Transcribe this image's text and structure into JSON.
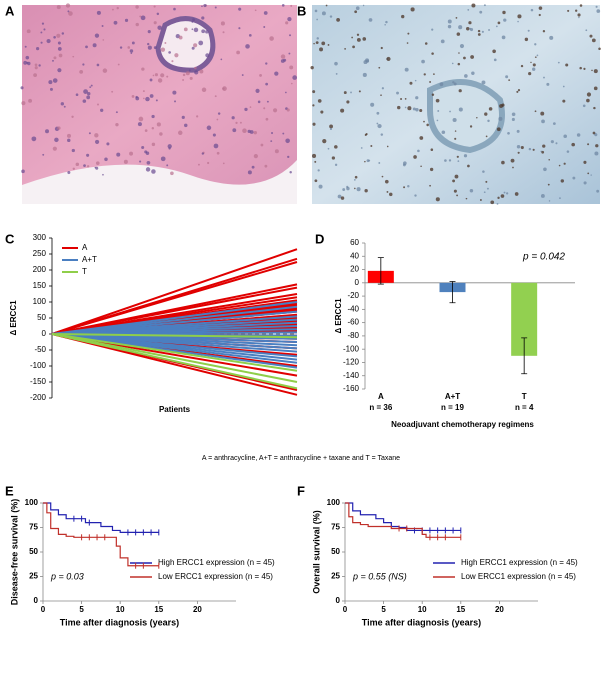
{
  "images": [
    {
      "panel": "A"
    },
    {
      "panel": "B"
    }
  ],
  "footnote": "A = anthracycline, A+T = anthracycline + taxane and T = Taxane",
  "chart_data": [
    {
      "type": "line",
      "panel": "C",
      "y_label": "Δ ERCC1",
      "x_label": "Patients",
      "ylim": [
        -200,
        300
      ],
      "yticks": [
        -200,
        -150,
        -100,
        -50,
        0,
        50,
        100,
        150,
        200,
        250,
        300
      ],
      "series": [
        {
          "name": "A",
          "color": "#e00000",
          "values": [
            265,
            235,
            225,
            155,
            145,
            125,
            115,
            105,
            100,
            95,
            90,
            80,
            75,
            70,
            60,
            55,
            50,
            45,
            40,
            35,
            30,
            25,
            20,
            15,
            10,
            5,
            -5,
            -10,
            -15,
            -25,
            -45,
            -65,
            -100,
            -130,
            -175,
            -190
          ]
        },
        {
          "name": "A+T",
          "color": "#4a7fc1",
          "values": [
            100,
            85,
            70,
            55,
            45,
            35,
            25,
            15,
            5,
            -5,
            -15,
            -25,
            -35,
            -45,
            -55,
            -70,
            -80,
            -90,
            -105
          ]
        },
        {
          "name": "T",
          "color": "#8fce4a",
          "values": [
            -10,
            -115,
            -150,
            -170
          ]
        }
      ]
    },
    {
      "type": "bar",
      "panel": "D",
      "y_label": "Δ ERCC1",
      "x_label": "Neoadjuvant chemotherapy regimens",
      "categories": [
        "A",
        "A+T",
        "T"
      ],
      "category_notes": [
        "n = 36",
        "n = 19",
        "n = 4"
      ],
      "values": [
        18,
        -14,
        -110
      ],
      "errors": [
        20,
        16,
        27
      ],
      "colors": [
        "#ff0000",
        "#4f81bd",
        "#92d050"
      ],
      "annotation": "p = 0.042",
      "ylim": [
        -160,
        60
      ],
      "yticks": [
        -160,
        -140,
        -120,
        -100,
        -80,
        -60,
        -40,
        -20,
        0,
        20,
        40,
        60
      ]
    },
    {
      "type": "step",
      "panel": "E",
      "y_label": "Disease-free survival (%)",
      "x_label": "Time after diagnosis (years)",
      "annotation": "p = 0.03",
      "xlim": [
        0,
        25
      ],
      "xticks": [
        0,
        5,
        10,
        15,
        20
      ],
      "ylim": [
        0,
        100
      ],
      "yticks": [
        0,
        25,
        50,
        75,
        100
      ],
      "series": [
        {
          "name": "High ERCC1 expression (n = 45)",
          "color": "#2222b0",
          "x": [
            0,
            1,
            2,
            3,
            5.5,
            7.5,
            9,
            10,
            15
          ],
          "values": [
            100,
            93,
            88,
            84,
            80,
            76,
            72,
            70,
            70
          ],
          "censored": [
            4,
            5,
            6,
            11,
            12,
            13,
            14,
            15
          ]
        },
        {
          "name": "Low ERCC1 expression (n = 45)",
          "color": "#c0302a",
          "x": [
            0,
            0.5,
            1,
            2,
            3,
            4,
            9.5,
            10,
            11,
            15
          ],
          "values": [
            100,
            90,
            74,
            68,
            66,
            65,
            56,
            44,
            36,
            36
          ],
          "censored": [
            5,
            6,
            7,
            8,
            12,
            13,
            15
          ]
        }
      ]
    },
    {
      "type": "step",
      "panel": "F",
      "y_label": "Overall survival (%)",
      "x_label": "Time after diagnosis (years)",
      "annotation": "p = 0.55 (NS)",
      "xlim": [
        0,
        25
      ],
      "xticks": [
        0,
        5,
        10,
        15,
        20
      ],
      "ylim": [
        0,
        100
      ],
      "yticks": [
        0,
        25,
        50,
        75,
        100
      ],
      "series": [
        {
          "name": "High ERCC1 expression (n = 45)",
          "color": "#2222b0",
          "x": [
            0,
            1,
            2,
            4,
            5,
            6,
            7,
            8,
            15
          ],
          "values": [
            100,
            92,
            88,
            84,
            80,
            76,
            75,
            72,
            72
          ],
          "censored": [
            9,
            10,
            11,
            12,
            13,
            14,
            15
          ]
        },
        {
          "name": "Low ERCC1 expression (n = 45)",
          "color": "#c0302a",
          "x": [
            0,
            0.5,
            1,
            2,
            3,
            6,
            10,
            10.5,
            15
          ],
          "values": [
            100,
            86,
            80,
            78,
            76,
            74,
            68,
            65,
            65
          ],
          "censored": [
            7,
            8,
            11,
            12,
            13,
            15
          ]
        }
      ]
    }
  ]
}
